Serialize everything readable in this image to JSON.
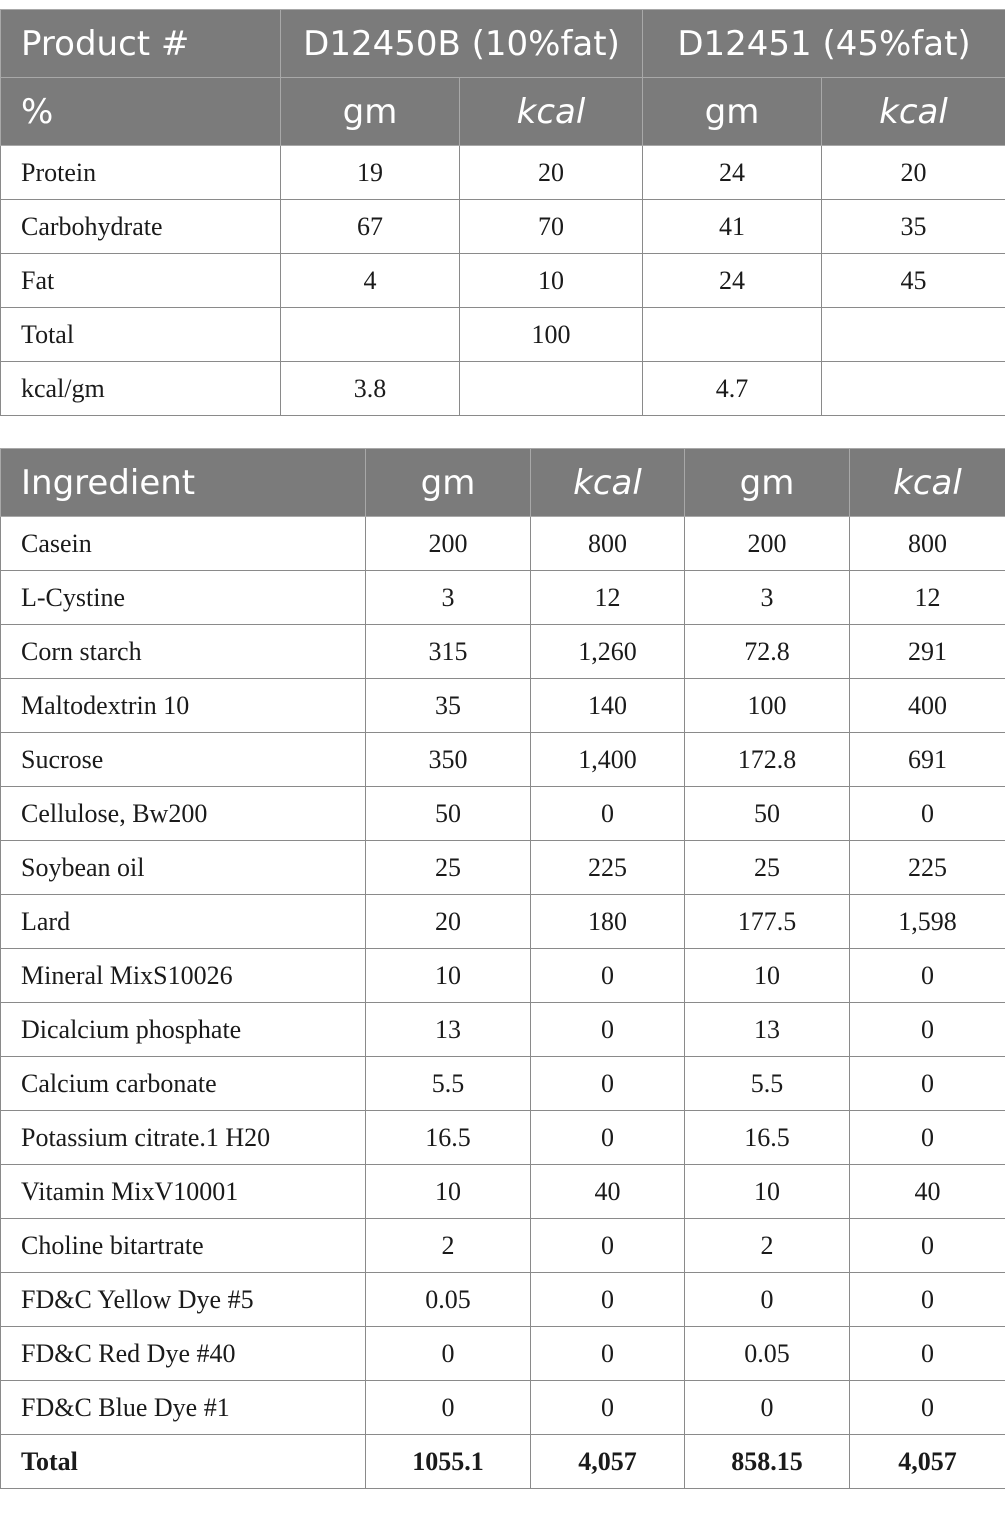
{
  "composition": {
    "header_row1": [
      "Product #",
      "D12450B (10%fat)",
      "D12451 (45%fat)"
    ],
    "header_row2": [
      "%",
      "gm",
      "kcal",
      "gm",
      "kcal"
    ],
    "rows": [
      [
        "Protein",
        "19",
        "20",
        "24",
        "20"
      ],
      [
        "Carbohydrate",
        "67",
        "70",
        "41",
        "35"
      ],
      [
        "Fat",
        "4",
        "10",
        "24",
        "45"
      ],
      [
        "Total",
        "",
        "100",
        "",
        ""
      ],
      [
        "kcal/gm",
        "3.8",
        "",
        "4.7",
        ""
      ]
    ]
  },
  "ingredients": {
    "header": [
      "Ingredient",
      "gm",
      "kcal",
      "gm",
      "kcal"
    ],
    "rows": [
      [
        "Casein",
        "200",
        "800",
        "200",
        "800"
      ],
      [
        "L-Cystine",
        "3",
        "12",
        "3",
        "12"
      ],
      [
        "Corn starch",
        "315",
        "1,260",
        "72.8",
        "291"
      ],
      [
        "Maltodextrin 10",
        "35",
        "140",
        "100",
        "400"
      ],
      [
        "Sucrose",
        "350",
        "1,400",
        "172.8",
        "691"
      ],
      [
        "Cellulose, Bw200",
        "50",
        "0",
        "50",
        "0"
      ],
      [
        "Soybean oil",
        "25",
        "225",
        "25",
        "225"
      ],
      [
        "Lard",
        "20",
        "180",
        "177.5",
        "1,598"
      ],
      [
        "Mineral MixS10026",
        "10",
        "0",
        "10",
        "0"
      ],
      [
        "Dicalcium phosphate",
        "13",
        "0",
        "13",
        "0"
      ],
      [
        "Calcium carbonate",
        "5.5",
        "0",
        "5.5",
        "0"
      ],
      [
        "Potassium citrate.1 H20",
        "16.5",
        "0",
        "16.5",
        "0"
      ],
      [
        "Vitamin MixV10001",
        "10",
        "40",
        "10",
        "40"
      ],
      [
        "Choline bitartrate",
        "2",
        "0",
        "2",
        "0"
      ],
      [
        "FD&C Yellow Dye #5",
        "0.05",
        "0",
        "0",
        "0"
      ],
      [
        "FD&C Red Dye #40",
        "0",
        "0",
        "0.05",
        "0"
      ],
      [
        "FD&C Blue Dye #1",
        "0",
        "0",
        "0",
        "0"
      ]
    ],
    "total_row": [
      "Total",
      "1055.1",
      "4,057",
      "858.15",
      "4,057"
    ]
  }
}
